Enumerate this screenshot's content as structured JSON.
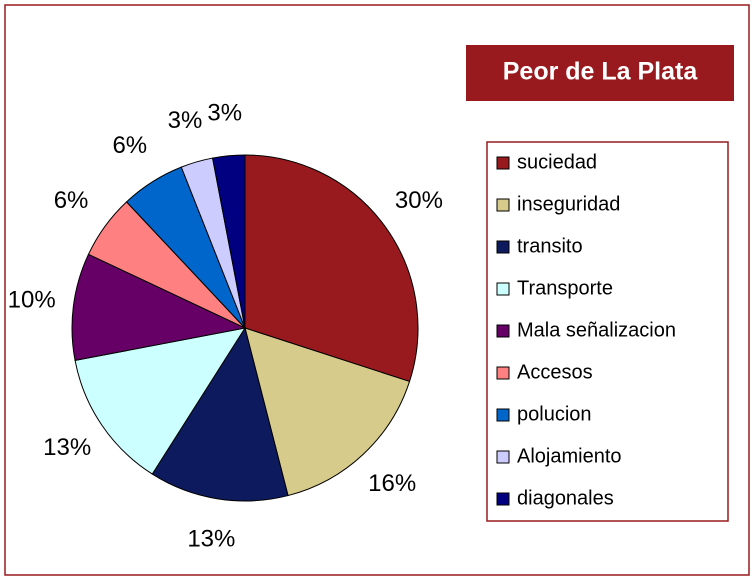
{
  "chart_data": {
    "type": "pie",
    "title": "Peor de La Plata",
    "categories": [
      "suciedad",
      "inseguridad",
      "transito",
      "Transporte",
      "Mala señalizacion",
      "Accesos",
      "polucion",
      "Alojamiento",
      "diagonales"
    ],
    "values": [
      30,
      16,
      13,
      13,
      10,
      6,
      6,
      3,
      3
    ],
    "value_labels": [
      "30%",
      "16%",
      "13%",
      "13%",
      "10%",
      "6%",
      "6%",
      "3%",
      "3%"
    ],
    "colors": [
      "#991a1e",
      "#d6cb8a",
      "#0d1a5e",
      "#ccffff",
      "#660066",
      "#ff8080",
      "#0066cc",
      "#ccccff",
      "#000080"
    ],
    "legend": "right"
  }
}
